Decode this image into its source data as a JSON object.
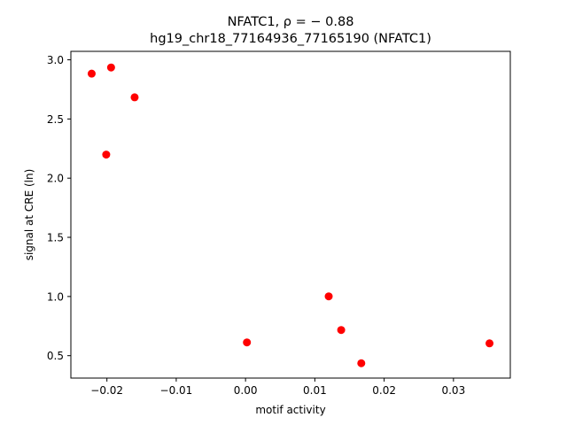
{
  "chart_data": {
    "type": "scatter",
    "title_line1": "NFATC1, ρ = − 0.88",
    "title_line2": "hg19_chr18_77164936_77165190 (NFATC1)",
    "xlabel": "motif activity",
    "ylabel": "signal at CRE (ln)",
    "xlim": [
      -0.0252,
      0.0382
    ],
    "ylim": [
      0.3107,
      3.0714
    ],
    "xticks": [
      -0.02,
      -0.01,
      0.0,
      0.01,
      0.02,
      0.03
    ],
    "xtick_labels": [
      "−0.02",
      "−0.01",
      "0.00",
      "0.01",
      "0.02",
      "0.03"
    ],
    "yticks": [
      0.5,
      1.0,
      1.5,
      2.0,
      2.5,
      3.0
    ],
    "ytick_labels": [
      "0.5",
      "1.0",
      "1.5",
      "2.0",
      "2.5",
      "3.0"
    ],
    "grid": false,
    "marker_color": "#ff0000",
    "points": [
      {
        "x": -0.0222,
        "y": 2.883
      },
      {
        "x": -0.0194,
        "y": 2.935
      },
      {
        "x": -0.016,
        "y": 2.683
      },
      {
        "x": -0.0201,
        "y": 2.199
      },
      {
        "x": 0.0002,
        "y": 0.612
      },
      {
        "x": 0.012,
        "y": 1.001
      },
      {
        "x": 0.0138,
        "y": 0.717
      },
      {
        "x": 0.0167,
        "y": 0.436
      },
      {
        "x": 0.0352,
        "y": 0.604
      }
    ]
  }
}
